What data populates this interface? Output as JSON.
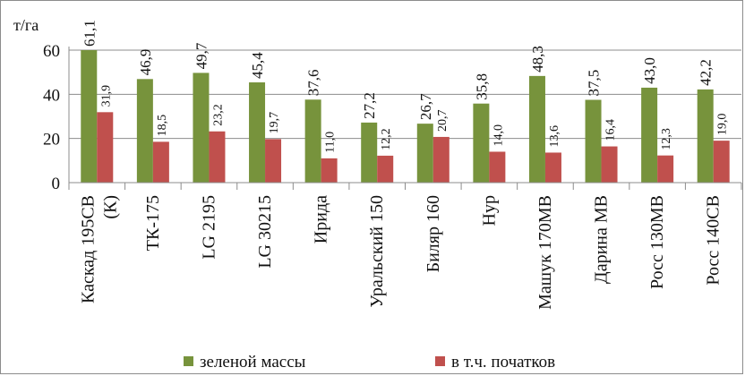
{
  "chart_data": {
    "type": "bar",
    "ylabel": "т/га",
    "ylim": [
      0,
      60
    ],
    "yticks": [
      0,
      20,
      40,
      60
    ],
    "grid": true,
    "legend_position": "bottom",
    "categories": [
      "Каскад 195СВ (К)",
      "ТК-175",
      "LG 2195",
      "LG 30215",
      "Ирида",
      "Уральский 150",
      "Биляр 160",
      "Нур",
      "Машук 170МВ",
      "Дарина МВ",
      "Росс 130МВ",
      "Росс 140СВ"
    ],
    "series": [
      {
        "name": "зеленой массы",
        "color": "#77933c",
        "values": [
          61.1,
          46.9,
          49.7,
          45.4,
          37.6,
          27.2,
          26.7,
          35.8,
          48.3,
          37.5,
          43.0,
          42.2
        ],
        "labels": [
          "61,1",
          "46,9",
          "49,7",
          "45,4",
          "37,6",
          "27,2",
          "26,7",
          "35,8",
          "48,3",
          "37,5",
          "43,0",
          "42,2"
        ]
      },
      {
        "name": "в т.ч. початков",
        "color": "#c0504d",
        "values": [
          31.9,
          18.5,
          23.2,
          19.7,
          11.0,
          12.2,
          20.7,
          14.0,
          13.6,
          16.4,
          12.3,
          19.0
        ],
        "labels": [
          "31,9",
          "18,5",
          "23,2",
          "19,7",
          "11,0",
          "12,2",
          "20,7",
          "14,0",
          "13,6",
          "16,4",
          "12,3",
          "19,0"
        ]
      }
    ]
  }
}
